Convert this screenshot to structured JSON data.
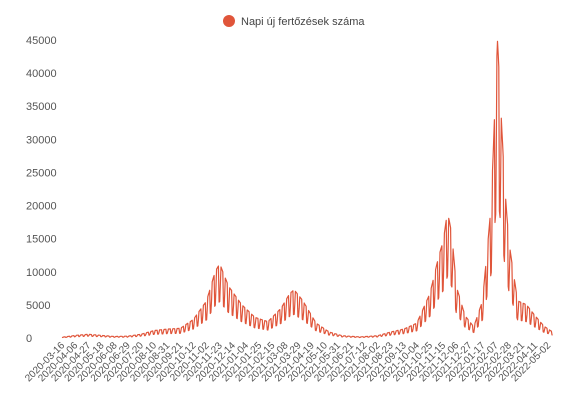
{
  "chart_data": {
    "type": "line",
    "title": "",
    "xlabel": "",
    "ylabel": "",
    "legend": {
      "position": "top-center",
      "label": "Napi új fertőzések száma"
    },
    "color": "#e0553a",
    "ylim": [
      0,
      45000
    ],
    "y_ticks": [
      0,
      5000,
      10000,
      15000,
      20000,
      25000,
      30000,
      35000,
      40000,
      45000
    ],
    "grid": false,
    "x_tick_labels": [
      "2020-03-16",
      "2020-04-06",
      "2020-04-27",
      "2020-05-18",
      "2020-06-08",
      "2020-06-29",
      "2020-07-20",
      "2020-08-10",
      "2020-08-31",
      "2020-09-21",
      "2020-10-12",
      "2020-11-02",
      "2020-11-23",
      "2020-12-14",
      "2021-01-04",
      "2021-01-25",
      "2021-02-15",
      "2021-03-08",
      "2021-03-29",
      "2021-04-19",
      "2021-05-10",
      "2021-05-31",
      "2021-06-21",
      "2021-07-12",
      "2021-08-02",
      "2021-08-23",
      "2021-09-13",
      "2021-10-04",
      "2021-10-25",
      "2021-11-15",
      "2021-12-06",
      "2021-12-27",
      "2022-01-17",
      "2022-02-07",
      "2022-02-28",
      "2022-03-21",
      "2022-04-11",
      "2022-05-02"
    ],
    "series": [
      {
        "name": "Napi új fertőzések száma",
        "points": [
          [
            "2020-03-16",
            100
          ],
          [
            "2020-04-06",
            350
          ],
          [
            "2020-04-27",
            500
          ],
          [
            "2020-05-18",
            350
          ],
          [
            "2020-06-08",
            200
          ],
          [
            "2020-06-29",
            250
          ],
          [
            "2020-07-20",
            500
          ],
          [
            "2020-08-10",
            1000
          ],
          [
            "2020-08-31",
            1200
          ],
          [
            "2020-09-21",
            1300
          ],
          [
            "2020-10-12",
            2500
          ],
          [
            "2020-11-02",
            5000
          ],
          [
            "2020-11-16",
            9000
          ],
          [
            "2020-11-23",
            10000
          ],
          [
            "2020-12-07",
            7000
          ],
          [
            "2020-12-28",
            4500
          ],
          [
            "2021-01-18",
            2800
          ],
          [
            "2021-02-08",
            2200
          ],
          [
            "2021-03-01",
            4000
          ],
          [
            "2021-03-15",
            6000
          ],
          [
            "2021-03-22",
            6500
          ],
          [
            "2021-04-05",
            5000
          ],
          [
            "2021-04-26",
            2000
          ],
          [
            "2021-05-17",
            800
          ],
          [
            "2021-06-07",
            300
          ],
          [
            "2021-07-05",
            150
          ],
          [
            "2021-08-02",
            300
          ],
          [
            "2021-08-23",
            800
          ],
          [
            "2021-09-13",
            1200
          ],
          [
            "2021-10-04",
            2000
          ],
          [
            "2021-10-25",
            6000
          ],
          [
            "2021-11-08",
            11000
          ],
          [
            "2021-11-15",
            13000
          ],
          [
            "2021-11-22",
            17000
          ],
          [
            "2021-11-29",
            14000
          ],
          [
            "2021-12-06",
            7000
          ],
          [
            "2021-12-20",
            3000
          ],
          [
            "2022-01-03",
            1500
          ],
          [
            "2022-01-17",
            5000
          ],
          [
            "2022-01-31",
            18000
          ],
          [
            "2022-02-07",
            34000
          ],
          [
            "2022-02-10",
            40000
          ],
          [
            "2022-02-21",
            21000
          ],
          [
            "2022-02-28",
            13000
          ],
          [
            "2022-03-14",
            5000
          ],
          [
            "2022-03-28",
            4500
          ],
          [
            "2022-04-11",
            3000
          ],
          [
            "2022-04-25",
            1600
          ],
          [
            "2022-05-09",
            800
          ]
        ]
      }
    ]
  }
}
